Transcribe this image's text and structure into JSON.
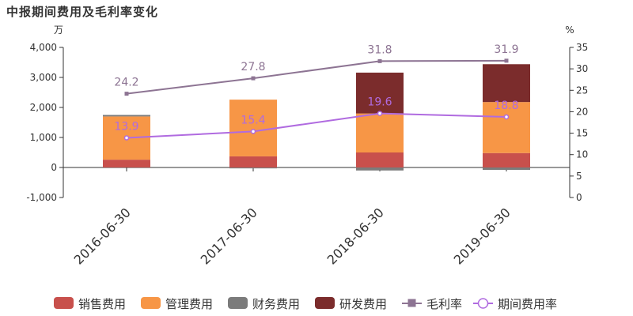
{
  "chart_data": {
    "type": "bar",
    "title": "中报期间费用及毛利率变化",
    "y_left_unit": "万",
    "y_right_unit": "%",
    "categories": [
      "2016-06-30",
      "2017-06-30",
      "2018-06-30",
      "2019-06-30"
    ],
    "ylim_left": [
      -1000,
      4000
    ],
    "yticks_left": [
      -1000,
      0,
      1000,
      2000,
      3000,
      4000
    ],
    "yticks_left_labels": [
      "-1,000",
      "0",
      "1,000",
      "2,000",
      "3,000",
      "4,000"
    ],
    "ylim_right": [
      0,
      35
    ],
    "yticks_right": [
      0,
      5,
      10,
      15,
      20,
      25,
      30,
      35
    ],
    "series": [
      {
        "name": "销售费用",
        "kind": "stacked-bar",
        "color": "#c8504c",
        "values": [
          260,
          370,
          500,
          480
        ]
      },
      {
        "name": "管理费用",
        "kind": "stacked-bar",
        "color": "#f79646",
        "values": [
          1440,
          1890,
          1300,
          1700
        ]
      },
      {
        "name": "财务费用",
        "kind": "stacked-bar",
        "color": "#7b7b7b",
        "values": [
          50,
          -30,
          -100,
          -80
        ]
      },
      {
        "name": "研发费用",
        "kind": "stacked-bar",
        "color": "#7b2c2c",
        "values": [
          0,
          0,
          1360,
          1260
        ]
      },
      {
        "name": "毛利率",
        "kind": "line",
        "axis": "right",
        "color": "#8d7493",
        "marker": "square",
        "values": [
          24.2,
          27.8,
          31.8,
          31.9
        ],
        "labels": [
          "24.2",
          "27.8",
          "31.8",
          "31.9"
        ]
      },
      {
        "name": "期间费用率",
        "kind": "line",
        "axis": "right",
        "color": "#b06be0",
        "marker": "circle",
        "values": [
          13.9,
          15.4,
          19.6,
          18.8
        ],
        "labels": [
          "13.9",
          "15.4",
          "19.6",
          "18.8"
        ]
      }
    ],
    "legend_position": "bottom",
    "grid": false
  }
}
